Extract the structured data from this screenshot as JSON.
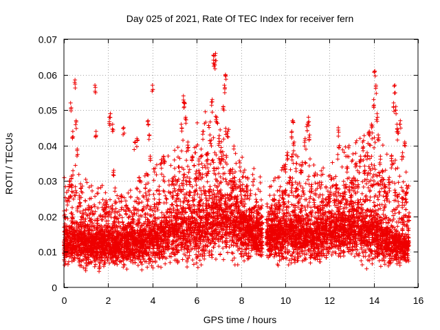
{
  "chart_data": {
    "type": "scatter",
    "title": "Day 025 of 2021, Rate Of TEC Index for receiver fern",
    "xlabel": "GPS time / hours",
    "ylabel": "ROTI / TECUs",
    "xlim": [
      0,
      16
    ],
    "ylim": [
      0,
      0.07
    ],
    "x_ticks": [
      0,
      2,
      4,
      6,
      8,
      10,
      12,
      14,
      16
    ],
    "x_tick_labels": [
      "0",
      "2",
      "4",
      "6",
      "8",
      "10",
      "12",
      "14",
      "16"
    ],
    "y_ticks": [
      0,
      0.01,
      0.02,
      0.03,
      0.04,
      0.05,
      0.06,
      0.07
    ],
    "y_tick_labels": [
      "0",
      "0.01",
      "0.02",
      "0.03",
      "0.04",
      "0.05",
      "0.06",
      "0.07"
    ],
    "grid": true,
    "marker": "plus",
    "color": "#ee0000",
    "data_gap_hours": [
      8.97,
      9.15
    ],
    "x_range_observed": [
      0.0,
      15.6
    ],
    "series": [
      {
        "name": "ROTI",
        "points": [
          [
            0.05,
            0.009
          ],
          [
            0.1,
            0.013
          ],
          [
            0.15,
            0.016
          ],
          [
            0.2,
            0.011
          ],
          [
            0.25,
            0.03
          ],
          [
            0.3,
            0.052
          ],
          [
            0.35,
            0.021
          ],
          [
            0.4,
            0.044
          ],
          [
            0.45,
            0.012
          ],
          [
            0.5,
            0.0585
          ],
          [
            0.55,
            0.047
          ],
          [
            0.6,
            0.039
          ],
          [
            0.65,
            0.015
          ],
          [
            0.7,
            0.008
          ],
          [
            0.8,
            0.02
          ],
          [
            0.9,
            0.013
          ],
          [
            1.0,
            0.007
          ],
          [
            1.1,
            0.016
          ],
          [
            1.2,
            0.021
          ],
          [
            1.3,
            0.011
          ],
          [
            1.4,
            0.057
          ],
          [
            1.45,
            0.044
          ],
          [
            1.5,
            0.019
          ],
          [
            1.6,
            0.006
          ],
          [
            1.7,
            0.014
          ],
          [
            1.8,
            0.012
          ],
          [
            1.9,
            0.024
          ],
          [
            2.0,
            0.017
          ],
          [
            2.05,
            0.048
          ],
          [
            2.1,
            0.049
          ],
          [
            2.2,
            0.046
          ],
          [
            2.25,
            0.033
          ],
          [
            2.3,
            0.021
          ],
          [
            2.4,
            0.014
          ],
          [
            2.5,
            0.011
          ],
          [
            2.6,
            0.026
          ],
          [
            2.7,
            0.045
          ],
          [
            2.8,
            0.023
          ],
          [
            2.9,
            0.015
          ],
          [
            3.0,
            0.01
          ],
          [
            3.1,
            0.02
          ],
          [
            3.2,
            0.041
          ],
          [
            3.3,
            0.042
          ],
          [
            3.4,
            0.031
          ],
          [
            3.5,
            0.016
          ],
          [
            3.6,
            0.014
          ],
          [
            3.7,
            0.029
          ],
          [
            3.8,
            0.047
          ],
          [
            3.85,
            0.043
          ],
          [
            3.9,
            0.037
          ],
          [
            4.0,
            0.057
          ],
          [
            4.1,
            0.018
          ],
          [
            4.2,
            0.012
          ],
          [
            4.3,
            0.024
          ],
          [
            4.4,
            0.036
          ],
          [
            4.5,
            0.037
          ],
          [
            4.6,
            0.019
          ],
          [
            4.7,
            0.014
          ],
          [
            4.8,
            0.022
          ],
          [
            4.9,
            0.03
          ],
          [
            5.0,
            0.017
          ],
          [
            5.1,
            0.026
          ],
          [
            5.2,
            0.034
          ],
          [
            5.3,
            0.046
          ],
          [
            5.4,
            0.054
          ],
          [
            5.45,
            0.052
          ],
          [
            5.5,
            0.048
          ],
          [
            5.6,
            0.041
          ],
          [
            5.7,
            0.029
          ],
          [
            5.8,
            0.037
          ],
          [
            5.9,
            0.022
          ],
          [
            6.0,
            0.031
          ],
          [
            6.1,
            0.033
          ],
          [
            6.2,
            0.039
          ],
          [
            6.3,
            0.044
          ],
          [
            6.4,
            0.027
          ],
          [
            6.5,
            0.036
          ],
          [
            6.6,
            0.043
          ],
          [
            6.7,
            0.053
          ],
          [
            6.75,
            0.0655
          ],
          [
            6.8,
            0.063
          ],
          [
            6.85,
            0.066
          ],
          [
            6.9,
            0.048
          ],
          [
            7.0,
            0.042
          ],
          [
            7.1,
            0.038
          ],
          [
            7.2,
            0.051
          ],
          [
            7.25,
            0.057
          ],
          [
            7.3,
            0.06
          ],
          [
            7.4,
            0.044
          ],
          [
            7.5,
            0.033
          ],
          [
            7.6,
            0.028
          ],
          [
            7.7,
            0.031
          ],
          [
            7.8,
            0.025
          ],
          [
            7.9,
            0.023
          ],
          [
            8.0,
            0.018
          ],
          [
            8.1,
            0.021
          ],
          [
            8.2,
            0.026
          ],
          [
            8.3,
            0.019
          ],
          [
            8.4,
            0.022
          ],
          [
            8.5,
            0.016
          ],
          [
            8.6,
            0.014
          ],
          [
            8.7,
            0.012
          ],
          [
            8.8,
            0.021
          ],
          [
            8.95,
            0.013
          ],
          [
            9.2,
            0.015
          ],
          [
            9.3,
            0.011
          ],
          [
            9.4,
            0.019
          ],
          [
            9.5,
            0.026
          ],
          [
            9.6,
            0.012
          ],
          [
            9.7,
            0.024
          ],
          [
            9.8,
            0.018
          ],
          [
            9.9,
            0.027
          ],
          [
            10.0,
            0.034
          ],
          [
            10.1,
            0.038
          ],
          [
            10.2,
            0.031
          ],
          [
            10.3,
            0.044
          ],
          [
            10.35,
            0.047
          ],
          [
            10.4,
            0.041
          ],
          [
            10.5,
            0.035
          ],
          [
            10.6,
            0.026
          ],
          [
            10.7,
            0.033
          ],
          [
            10.8,
            0.028
          ],
          [
            10.9,
            0.042
          ],
          [
            11.0,
            0.046
          ],
          [
            11.05,
            0.048
          ],
          [
            11.1,
            0.043
          ],
          [
            11.2,
            0.029
          ],
          [
            11.3,
            0.018
          ],
          [
            11.4,
            0.014
          ],
          [
            11.5,
            0.011
          ],
          [
            11.6,
            0.022
          ],
          [
            11.7,
            0.025
          ],
          [
            11.8,
            0.017
          ],
          [
            11.9,
            0.02
          ],
          [
            12.0,
            0.023
          ],
          [
            12.1,
            0.031
          ],
          [
            12.2,
            0.026
          ],
          [
            12.3,
            0.029
          ],
          [
            12.4,
            0.045
          ],
          [
            12.45,
            0.04
          ],
          [
            12.5,
            0.024
          ],
          [
            12.6,
            0.021
          ],
          [
            12.7,
            0.028
          ],
          [
            12.8,
            0.034
          ],
          [
            12.9,
            0.019
          ],
          [
            13.0,
            0.026
          ],
          [
            13.1,
            0.031
          ],
          [
            13.2,
            0.035
          ],
          [
            13.3,
            0.029
          ],
          [
            13.4,
            0.037
          ],
          [
            13.5,
            0.041
          ],
          [
            13.6,
            0.033
          ],
          [
            13.7,
            0.038
          ],
          [
            13.8,
            0.044
          ],
          [
            13.9,
            0.046
          ],
          [
            14.0,
            0.053
          ],
          [
            14.05,
            0.061
          ],
          [
            14.1,
            0.057
          ],
          [
            14.15,
            0.049
          ],
          [
            14.2,
            0.043
          ],
          [
            14.3,
            0.037
          ],
          [
            14.4,
            0.033
          ],
          [
            14.5,
            0.029
          ],
          [
            14.6,
            0.026
          ],
          [
            14.7,
            0.031
          ],
          [
            14.8,
            0.037
          ],
          [
            14.9,
            0.052
          ],
          [
            14.95,
            0.057
          ],
          [
            15.0,
            0.051
          ],
          [
            15.05,
            0.046
          ],
          [
            15.1,
            0.044
          ],
          [
            15.2,
            0.047
          ],
          [
            15.3,
            0.038
          ],
          [
            15.4,
            0.041
          ],
          [
            15.5,
            0.028
          ],
          [
            15.6,
            0.021
          ]
        ],
        "profile": {
          "x": [
            0.0,
            0.5,
            1.0,
            1.5,
            2.0,
            2.5,
            3.0,
            3.5,
            4.0,
            4.5,
            5.0,
            5.5,
            6.0,
            6.5,
            7.0,
            7.5,
            8.0,
            8.5,
            8.95,
            9.2,
            9.5,
            10.0,
            10.5,
            11.0,
            11.5,
            12.0,
            12.5,
            13.0,
            13.5,
            14.0,
            14.5,
            15.0,
            15.6
          ],
          "median": [
            0.012,
            0.013,
            0.012,
            0.012,
            0.012,
            0.012,
            0.012,
            0.012,
            0.013,
            0.014,
            0.015,
            0.016,
            0.016,
            0.017,
            0.018,
            0.018,
            0.016,
            0.015,
            0.014,
            0.014,
            0.014,
            0.015,
            0.015,
            0.014,
            0.014,
            0.015,
            0.016,
            0.016,
            0.016,
            0.015,
            0.013,
            0.012,
            0.011
          ],
          "upper": [
            0.025,
            0.028,
            0.024,
            0.022,
            0.024,
            0.022,
            0.022,
            0.024,
            0.026,
            0.028,
            0.03,
            0.033,
            0.035,
            0.038,
            0.037,
            0.035,
            0.03,
            0.027,
            0.025,
            0.024,
            0.025,
            0.028,
            0.03,
            0.03,
            0.026,
            0.028,
            0.03,
            0.032,
            0.034,
            0.035,
            0.03,
            0.027,
            0.024
          ],
          "lower": [
            0.007,
            0.006,
            0.006,
            0.006,
            0.006,
            0.006,
            0.006,
            0.006,
            0.006,
            0.007,
            0.007,
            0.007,
            0.007,
            0.008,
            0.008,
            0.008,
            0.008,
            0.008,
            0.007,
            0.008,
            0.008,
            0.008,
            0.007,
            0.007,
            0.007,
            0.008,
            0.008,
            0.008,
            0.007,
            0.007,
            0.007,
            0.007,
            0.007
          ]
        }
      }
    ]
  }
}
